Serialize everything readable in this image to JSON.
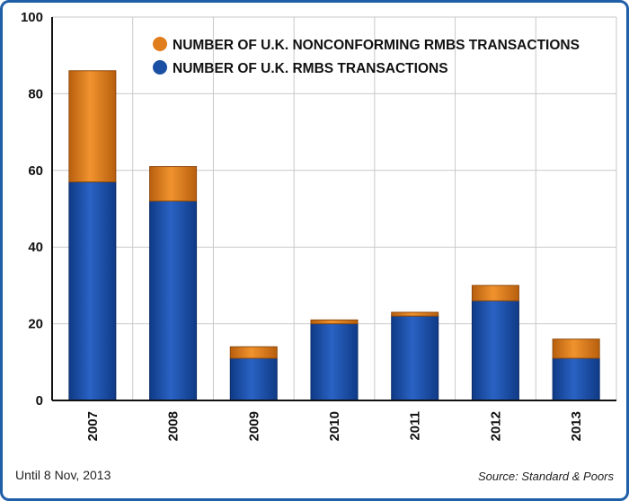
{
  "chart_data": {
    "type": "bar",
    "stacked": true,
    "categories": [
      "2007",
      "2008",
      "2009",
      "2010",
      "2011",
      "2012",
      "2013"
    ],
    "series": [
      {
        "name": "NUMBER OF U.K. RMBS TRANSACTIONS",
        "color": "#1a4fa3",
        "values": [
          57,
          52,
          11,
          20,
          22,
          26,
          11
        ]
      },
      {
        "name": "NUMBER OF U.K. NONCONFORMING RMBS TRANSACTIONS",
        "color": "#e07d1c",
        "values": [
          29,
          9,
          3,
          1,
          1,
          4,
          5
        ]
      }
    ],
    "ylim": [
      0,
      100
    ],
    "yticks": [
      0,
      20,
      40,
      60,
      80,
      100
    ],
    "grid": true,
    "legend_position": "top-right"
  },
  "footnote": "Until 8 Nov, 2013",
  "source": "Source: Standard & Poors"
}
